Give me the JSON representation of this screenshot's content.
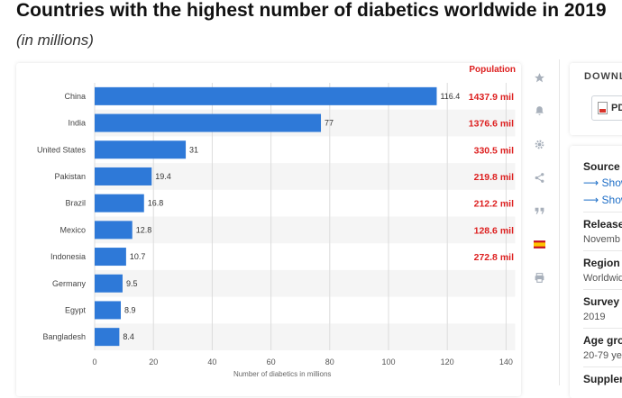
{
  "header": {
    "title": "Countries with the highest number of diabetics worldwide in 2019",
    "subtitle": "(in millions)"
  },
  "chart_data": {
    "type": "bar",
    "orientation": "horizontal",
    "categories": [
      "China",
      "India",
      "United States",
      "Pakistan",
      "Brazil",
      "Mexico",
      "Indonesia",
      "Germany",
      "Egypt",
      "Bangladesh"
    ],
    "values": [
      116.4,
      77,
      31,
      19.4,
      16.8,
      12.8,
      10.7,
      9.5,
      8.9,
      8.4
    ],
    "value_labels": [
      "116.4",
      "77",
      "31",
      "19.4",
      "16.8",
      "12.8",
      "10.7",
      "9.5",
      "8.9",
      "8.4"
    ],
    "xlabel": "Number of diabetics in millions",
    "xlim": [
      0,
      140
    ],
    "xticks": [
      0,
      20,
      40,
      60,
      80,
      100,
      120,
      140
    ],
    "grid": true,
    "bar_color": "#2e79d8",
    "annotation_header": "Population",
    "annotation_color": "#dd1f1f",
    "annotations": [
      "1437.9 mil",
      "1376.6 mil",
      "330.5 mil",
      "219.8 mil",
      "212.2 mil",
      "128.6 mil",
      "272.8 mil"
    ]
  },
  "toolbar": {
    "items": [
      {
        "name": "star-icon",
        "glyph": "★"
      },
      {
        "name": "bell-icon",
        "glyph": "🔔"
      },
      {
        "name": "gear-icon",
        "glyph": "⚙"
      },
      {
        "name": "share-icon",
        "glyph": "share"
      },
      {
        "name": "quote-icon",
        "glyph": "❞"
      },
      {
        "name": "flag-spain-icon",
        "glyph": "flag"
      },
      {
        "name": "print-icon",
        "glyph": "print"
      }
    ]
  },
  "sidebar": {
    "download_title": "DOWNL",
    "pdf_label": "PD",
    "source_title": "Source",
    "source_links": [
      "Show",
      "Show"
    ],
    "release_title": "Release",
    "release_value": "Novemb",
    "region_title": "Region",
    "region_value": "Worldwid",
    "survey_title": "Survey",
    "survey_value": "2019",
    "age_title": "Age gro",
    "age_value": "20-79 ye",
    "supplement_title": "Suppler"
  }
}
